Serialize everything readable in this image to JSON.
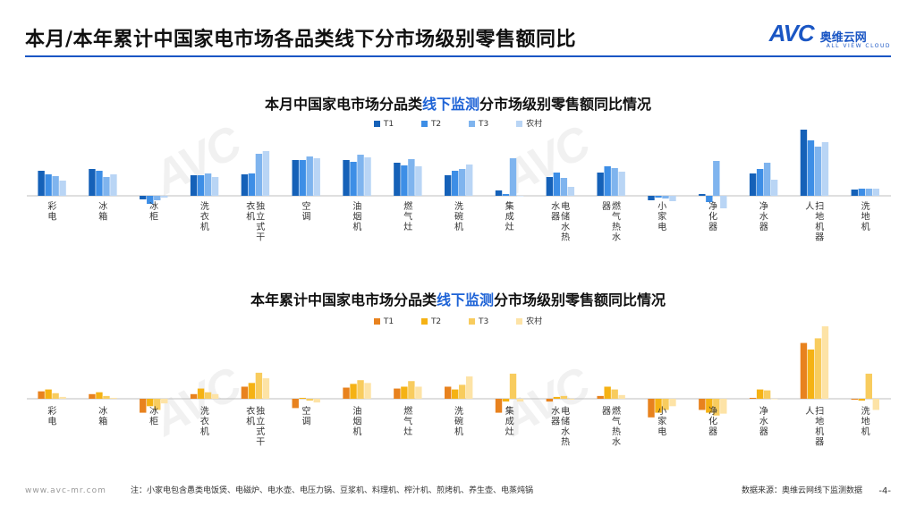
{
  "title": "本月/本年累计中国家电市场各品类线下分市场级别零售额同比",
  "logo": {
    "mark": "AVC",
    "cn": "奥维云网",
    "en": "ALL VIEW CLOUD"
  },
  "footer": {
    "website": "www.avc-mr.com",
    "note": "注：小家电包含愚类电饭煲、电磁炉、电水壶、电压力锅、豆浆机、料理机、榨汁机、煎烤机、养生壶、电蒸炖锅",
    "source": "数据来源：奥维云网线下监测数据",
    "page": "-4-"
  },
  "chart_data": [
    {
      "type": "bar",
      "title_parts": {
        "pre": "本月中国家电市场分品类",
        "hl": "线下监测",
        "post": "分市场级别零售额同比情况"
      },
      "categories": [
        "彩电",
        "冰箱",
        "冰柜",
        "洗衣机",
        "独立式干衣机",
        "空调",
        "油烟机",
        "燃气灶",
        "洗碗机",
        "集成灶",
        "电储水热水器",
        "燃气热水器",
        "小家电",
        "净化器",
        "净水器",
        "扫地机器人",
        "洗地机"
      ],
      "series": [
        {
          "name": "T1",
          "color": "#1561b8",
          "values": [
            28,
            30,
            -4,
            23,
            24,
            40,
            40,
            37,
            23,
            6,
            21,
            26,
            -5,
            2,
            25,
            74,
            7
          ]
        },
        {
          "name": "T2",
          "color": "#3d8ee6",
          "values": [
            24,
            28,
            -9,
            23,
            25,
            40,
            38,
            34,
            28,
            2,
            26,
            33,
            -2,
            -7,
            30,
            62,
            8
          ]
        },
        {
          "name": "T3",
          "color": "#7fb4ee",
          "values": [
            22,
            21,
            -5,
            25,
            47,
            44,
            46,
            41,
            30,
            42,
            20,
            31,
            -3,
            39,
            37,
            55,
            8
          ]
        },
        {
          "name": "农村",
          "color": "#b9d5f5",
          "values": [
            17,
            24,
            -2,
            21,
            50,
            42,
            43,
            33,
            35,
            0,
            10,
            27,
            -6,
            -14,
            18,
            60,
            8
          ]
        }
      ],
      "ylim": [
        -25,
        80
      ]
    },
    {
      "type": "bar",
      "title_parts": {
        "pre": "本年累计中国家电市场分品类",
        "hl": "线下监测",
        "post": "分市场级别零售额同比情况"
      },
      "categories": [
        "彩电",
        "冰箱",
        "冰柜",
        "洗衣机",
        "独立式干衣机",
        "空调",
        "油烟机",
        "燃气灶",
        "洗碗机",
        "集成灶",
        "电储水热水器",
        "燃气热水器",
        "小家电",
        "净化器",
        "净水器",
        "扫地机器人",
        "洗地机"
      ],
      "series": [
        {
          "name": "T1",
          "color": "#e8821e",
          "values": [
            8,
            5,
            -15,
            5,
            13,
            -10,
            12,
            11,
            13,
            -15,
            -3,
            3,
            -20,
            -12,
            1,
            60,
            -1
          ]
        },
        {
          "name": "T2",
          "color": "#f5b214",
          "values": [
            10,
            7,
            -8,
            11,
            17,
            1,
            16,
            13,
            10,
            -3,
            2,
            13,
            -15,
            -15,
            10,
            53,
            -2
          ]
        },
        {
          "name": "T3",
          "color": "#f8cc5e",
          "values": [
            6,
            3,
            -12,
            7,
            28,
            -2,
            20,
            19,
            15,
            27,
            3,
            10,
            -12,
            -18,
            9,
            65,
            27
          ]
        },
        {
          "name": "农村",
          "color": "#fde3a6",
          "values": [
            2,
            1,
            -5,
            5,
            22,
            -4,
            17,
            13,
            24,
            -3,
            -1,
            4,
            -8,
            -16,
            0,
            78,
            -12
          ]
        }
      ],
      "ylim": [
        -30,
        80
      ]
    }
  ]
}
